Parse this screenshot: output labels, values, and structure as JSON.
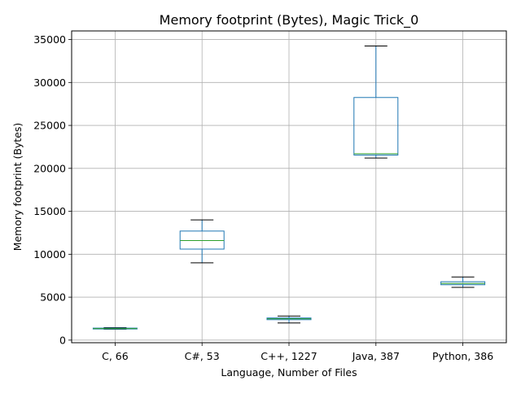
{
  "chart_data": {
    "type": "box",
    "title": "Memory footprint (Bytes), Magic Trick_0",
    "xlabel": "Language, Number of Files",
    "ylabel": "Memory footprint (Bytes)",
    "ylim": [
      -300,
      36000
    ],
    "yticks": [
      0,
      5000,
      10000,
      15000,
      20000,
      25000,
      30000,
      35000
    ],
    "ytick_labels": [
      "0",
      "5000",
      "10000",
      "15000",
      "20000",
      "25000",
      "30000",
      "35000"
    ],
    "grid": true,
    "categories": [
      "C, 66",
      "C#, 53",
      "C++, 1227",
      "Java, 387",
      "Python, 386"
    ],
    "boxes": [
      {
        "label": "C, 66",
        "whisker_low": 1280,
        "q1": 1300,
        "median": 1350,
        "q3": 1400,
        "whisker_high": 1450
      },
      {
        "label": "C#, 53",
        "whisker_low": 9000,
        "q1": 10600,
        "median": 11600,
        "q3": 12700,
        "whisker_high": 14000
      },
      {
        "label": "C++, 1227",
        "whisker_low": 2000,
        "q1": 2380,
        "median": 2480,
        "q3": 2580,
        "whisker_high": 2800
      },
      {
        "label": "Java, 387",
        "whisker_low": 21200,
        "q1": 21550,
        "median": 21700,
        "q3": 28250,
        "whisker_high": 34250
      },
      {
        "label": "Python, 386",
        "whisker_low": 6150,
        "q1": 6450,
        "median": 6600,
        "q3": 6800,
        "whisker_high": 7350
      }
    ],
    "colors": {
      "box": "#1f77b4",
      "median": "#2ca02c",
      "whisker_cap": "#000000",
      "grid": "#b0b0b0",
      "axes": "#000000"
    }
  }
}
